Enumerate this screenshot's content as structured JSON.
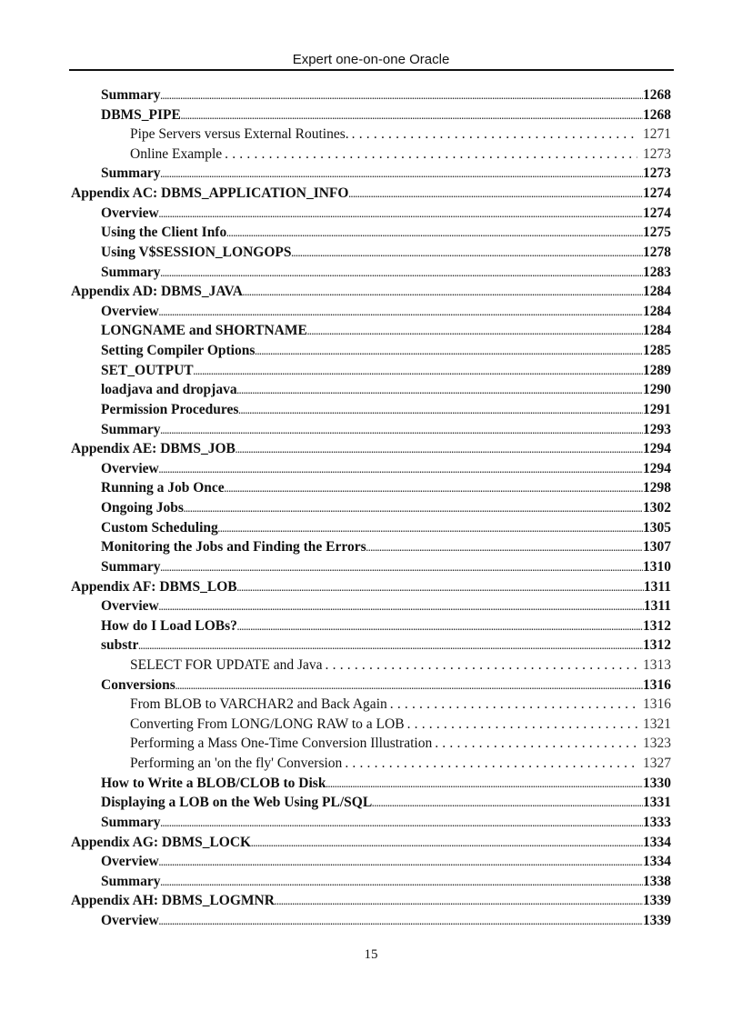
{
  "header": {
    "title": "Expert one-on-one Oracle"
  },
  "toc": [
    {
      "title": "Summary",
      "page": "1268",
      "level": 1
    },
    {
      "title": "DBMS_PIPE",
      "page": "1268",
      "level": 1
    },
    {
      "title": "Pipe Servers versus External Routines.",
      "page": "1271",
      "level": 2
    },
    {
      "title": "Online Example",
      "page": "1273",
      "level": 2
    },
    {
      "title": "Summary",
      "page": "1273",
      "level": 1
    },
    {
      "title": "Appendix AC: DBMS_APPLICATION_INFO",
      "page": "1274",
      "level": 0
    },
    {
      "title": "Overview",
      "page": "1274",
      "level": 1
    },
    {
      "title": "Using the Client Info",
      "page": "1275",
      "level": 1
    },
    {
      "title": "Using V$SESSION_LONGOPS",
      "page": "1278",
      "level": 1
    },
    {
      "title": "Summary",
      "page": "1283",
      "level": 1
    },
    {
      "title": "Appendix AD: DBMS_JAVA",
      "page": "1284",
      "level": 0
    },
    {
      "title": "Overview",
      "page": "1284",
      "level": 1
    },
    {
      "title": "LONGNAME and SHORTNAME",
      "page": "1284",
      "level": 1
    },
    {
      "title": "Setting Compiler Options",
      "page": "1285",
      "level": 1
    },
    {
      "title": "SET_OUTPUT",
      "page": "1289",
      "level": 1
    },
    {
      "title": "loadjava and dropjava",
      "page": "1290",
      "level": 1
    },
    {
      "title": "Permission Procedures",
      "page": "1291",
      "level": 1
    },
    {
      "title": "Summary",
      "page": "1293",
      "level": 1
    },
    {
      "title": "Appendix AE: DBMS_JOB",
      "page": "1294",
      "level": 0
    },
    {
      "title": "Overview",
      "page": "1294",
      "level": 1
    },
    {
      "title": "Running a Job Once",
      "page": "1298",
      "level": 1
    },
    {
      "title": "Ongoing Jobs",
      "page": "1302",
      "level": 1
    },
    {
      "title": "Custom Scheduling",
      "page": "1305",
      "level": 1
    },
    {
      "title": "Monitoring the Jobs and Finding the Errors",
      "page": "1307",
      "level": 1
    },
    {
      "title": "Summary",
      "page": "1310",
      "level": 1
    },
    {
      "title": "Appendix AF: DBMS_LOB",
      "page": "1311",
      "level": 0
    },
    {
      "title": "Overview",
      "page": "1311",
      "level": 1
    },
    {
      "title": "How do I Load LOBs?",
      "page": "1312",
      "level": 1
    },
    {
      "title": "substr",
      "page": "1312",
      "level": 1
    },
    {
      "title": "SELECT FOR UPDATE and Java",
      "page": "1313",
      "level": 2
    },
    {
      "title": "Conversions",
      "page": "1316",
      "level": 1
    },
    {
      "title": "From BLOB to VARCHAR2 and Back Again",
      "page": "1316",
      "level": 2
    },
    {
      "title": "Converting From LONG/LONG RAW to a LOB",
      "page": "1321",
      "level": 2
    },
    {
      "title": "Performing a Mass One-Time Conversion Illustration",
      "page": "1323",
      "level": 2
    },
    {
      "title": "Performing an 'on the fly' Conversion",
      "page": "1327",
      "level": 2
    },
    {
      "title": "How to Write a BLOB/CLOB to Disk",
      "page": "1330",
      "level": 1
    },
    {
      "title": "Displaying a LOB on the Web Using PL/SQL",
      "page": "1331",
      "level": 1
    },
    {
      "title": "Summary",
      "page": "1333",
      "level": 1
    },
    {
      "title": "Appendix AG: DBMS_LOCK",
      "page": "1334",
      "level": 0
    },
    {
      "title": "Overview",
      "page": "1334",
      "level": 1
    },
    {
      "title": "Summary",
      "page": "1338",
      "level": 1
    },
    {
      "title": "Appendix AH: DBMS_LOGMNR",
      "page": "1339",
      "level": 0
    },
    {
      "title": "Overview",
      "page": "1339",
      "level": 1
    }
  ],
  "footer": {
    "page_number": "15"
  }
}
